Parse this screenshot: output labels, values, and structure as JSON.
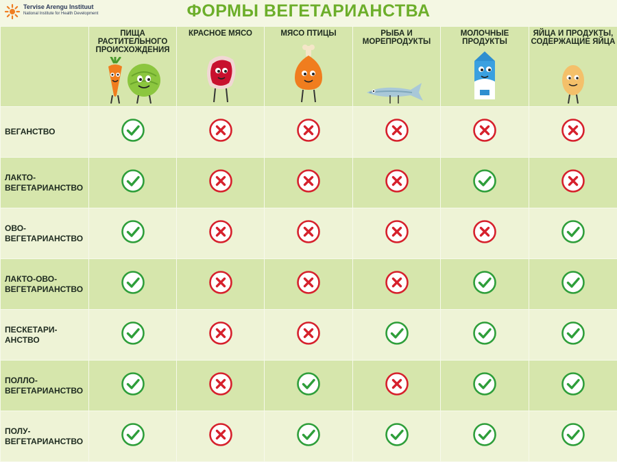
{
  "header": {
    "logo_name": "Tervise Arengu Instituut",
    "logo_subtitle": "National Institute for Health Development",
    "title": "ФОРМЫ ВЕГЕТАРИАНСТВА"
  },
  "colors": {
    "accent": "#6cae2a",
    "check": "#2e9e3a",
    "cross": "#d6202c",
    "band": "#d6e6ac",
    "band_light": "#eef3d6"
  },
  "columns": [
    {
      "label": "ПИЩА РАСТИТЕЛЬНОГО ПРОИСХОЖДЕНИЯ",
      "icon": "vegetables-icon"
    },
    {
      "label": "КРАСНОЕ МЯСО",
      "icon": "red-meat-icon"
    },
    {
      "label": "МЯСО ПТИЦЫ",
      "icon": "poultry-icon"
    },
    {
      "label": "РЫБА И МОРЕПРОДУКТЫ",
      "icon": "fish-icon"
    },
    {
      "label": "МОЛОЧНЫЕ ПРОДУКТЫ",
      "icon": "milk-carton-icon"
    },
    {
      "label": "ЯЙЦА И ПРОДУКТЫ, СОДЕРЖАЩИЕ ЯЙЦА",
      "icon": "egg-icon"
    }
  ],
  "rows": [
    {
      "label": "ВЕГАНСТВО",
      "allowed": [
        true,
        false,
        false,
        false,
        false,
        false
      ]
    },
    {
      "label": "ЛАКТО-ВЕГЕТАРИАНСТВО",
      "allowed": [
        true,
        false,
        false,
        false,
        true,
        false
      ]
    },
    {
      "label": "ОВО-ВЕГЕТАРИАНСТВО",
      "allowed": [
        true,
        false,
        false,
        false,
        false,
        true
      ]
    },
    {
      "label": "ЛАКТО-ОВО-ВЕГЕТАРИАНСТВО",
      "allowed": [
        true,
        false,
        false,
        false,
        true,
        true
      ]
    },
    {
      "label": "ПЕСКЕТАРИ-АНСТВО",
      "allowed": [
        true,
        false,
        false,
        true,
        true,
        true
      ]
    },
    {
      "label": "ПОЛЛО-ВЕГЕТАРИАНСТВО",
      "allowed": [
        true,
        false,
        true,
        false,
        true,
        true
      ]
    },
    {
      "label": "ПОЛУ-ВЕГЕТАРИАНСТВО",
      "allowed": [
        true,
        false,
        true,
        true,
        true,
        true
      ]
    }
  ]
}
